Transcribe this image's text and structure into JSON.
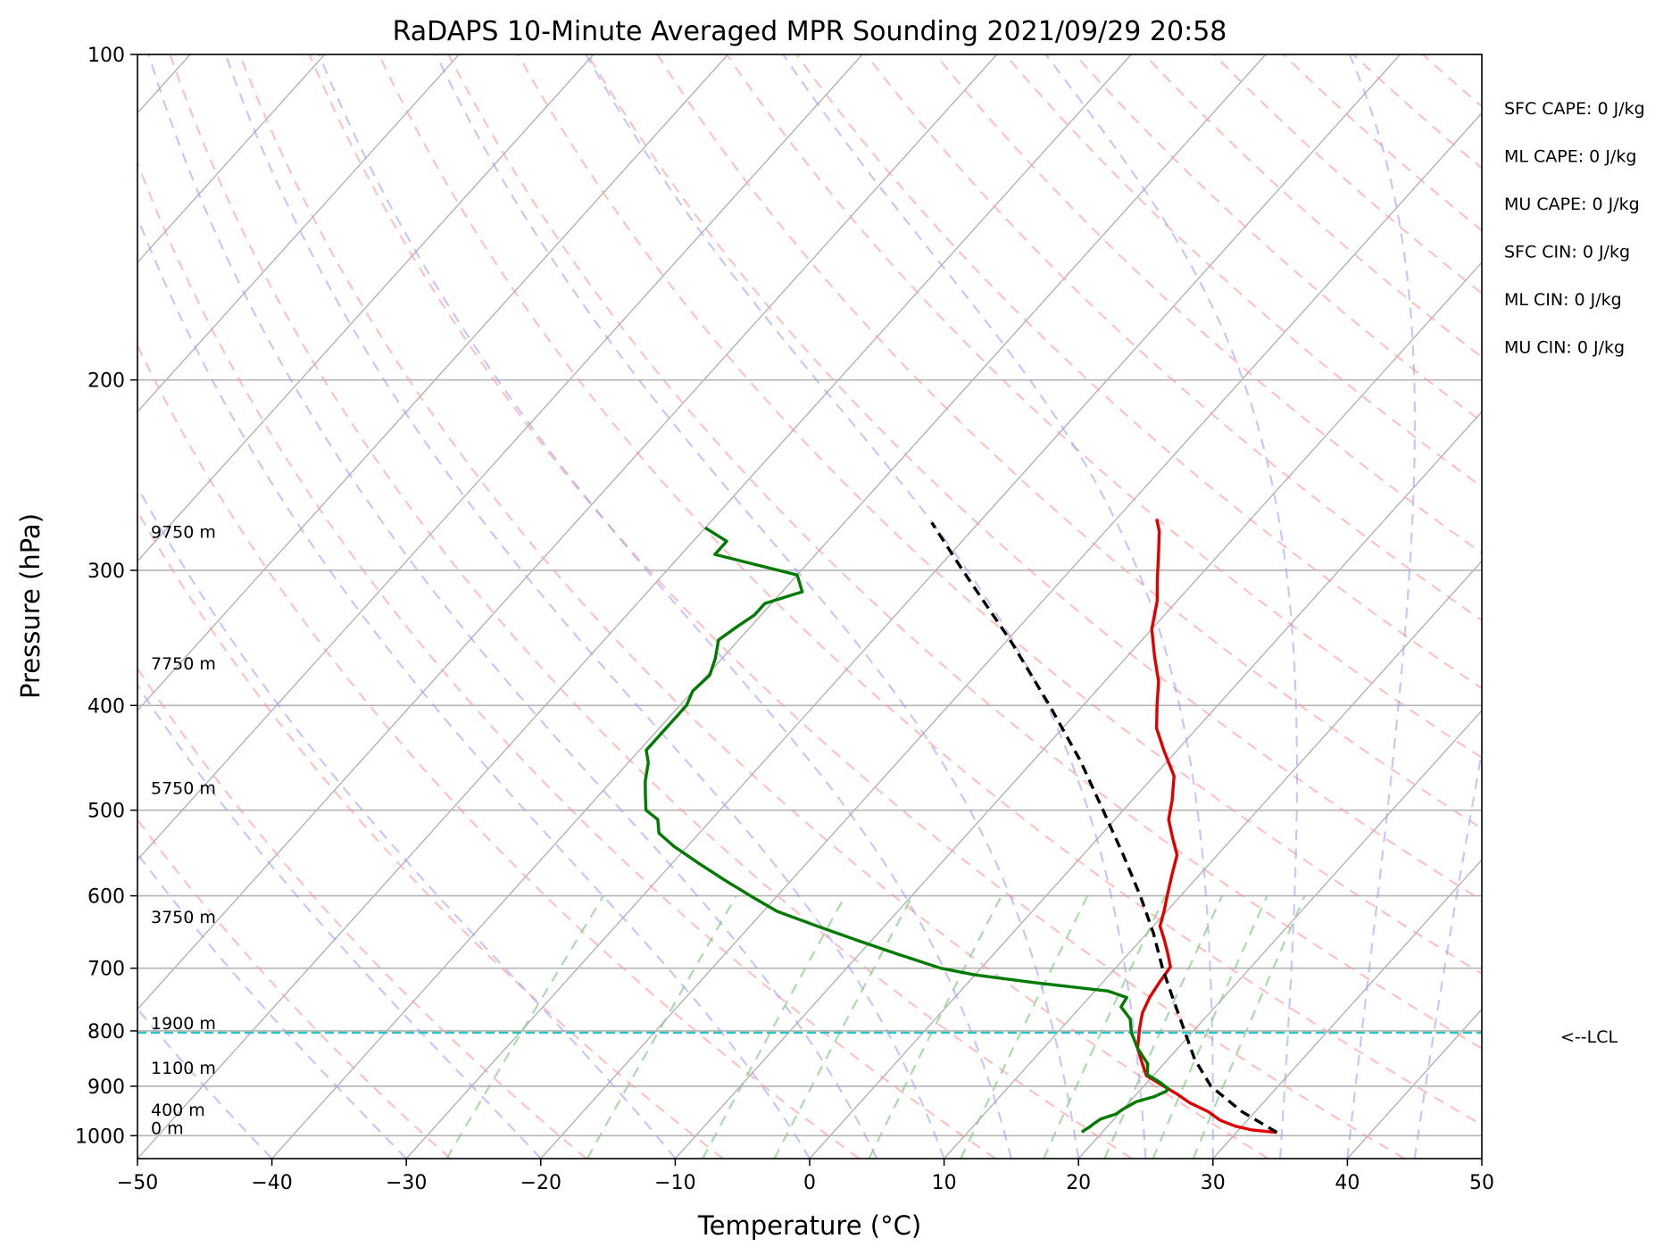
{
  "chart_data": {
    "type": "line",
    "subtype": "skew-T log-P sounding",
    "title": "RaDAPS 10-Minute Averaged MPR Sounding 2021/09/29 20:58",
    "xlabel": "Temperature (°C)",
    "ylabel": "Pressure (hPa)",
    "xlim": [
      -50,
      50
    ],
    "ylim": [
      1050,
      100
    ],
    "y_scale": "log",
    "x_ticks": [
      "−50",
      "−40",
      "−30",
      "−20",
      "−10",
      "0",
      "10",
      "20",
      "30",
      "40",
      "50"
    ],
    "y_ticks": [
      "100",
      "200",
      "300",
      "400",
      "500",
      "600",
      "700",
      "800",
      "900",
      "1000"
    ],
    "y_tick_values": [
      100,
      200,
      300,
      400,
      500,
      600,
      700,
      800,
      900,
      1000
    ],
    "grid": true,
    "height_labels": [
      {
        "text": "9750 m",
        "p": 281
      },
      {
        "text": "7750 m",
        "p": 372
      },
      {
        "text": "5750 m",
        "p": 485
      },
      {
        "text": "3750 m",
        "p": 638
      },
      {
        "text": "1900 m",
        "p": 800
      },
      {
        "text": "1100 m",
        "p": 880
      },
      {
        "text": "400 m",
        "p": 962
      },
      {
        "text": "0 m",
        "p": 1000
      }
    ],
    "lcl": {
      "label": "<--LCL",
      "p": 803
    },
    "indices": [
      "SFC CAPE: 0 J/kg",
      "ML CAPE: 0 J/kg",
      "MU CAPE: 0 J/kg",
      "SFC CIN: 0 J/kg",
      "ML CIN: 0 J/kg",
      "MU CIN: 0 J/kg"
    ],
    "series": [
      {
        "color": "#e00000",
        "style": "solid",
        "points": [
          {
            "p": 993,
            "t": 33.0
          },
          {
            "p": 988,
            "t": 31.0
          },
          {
            "p": 980,
            "t": 29.5
          },
          {
            "p": 968,
            "t": 28.0
          },
          {
            "p": 950,
            "t": 26.5
          },
          {
            "p": 932,
            "t": 24.5
          },
          {
            "p": 915,
            "t": 23.0
          },
          {
            "p": 900,
            "t": 21.5
          },
          {
            "p": 880,
            "t": 19.5
          },
          {
            "p": 860,
            "t": 18.5
          },
          {
            "p": 830,
            "t": 17.0
          },
          {
            "p": 795,
            "t": 15.8
          },
          {
            "p": 770,
            "t": 15.0
          },
          {
            "p": 745,
            "t": 14.5
          },
          {
            "p": 720,
            "t": 14.2
          },
          {
            "p": 698,
            "t": 14.0
          },
          {
            "p": 680,
            "t": 13.0
          },
          {
            "p": 660,
            "t": 11.8
          },
          {
            "p": 640,
            "t": 10.5
          },
          {
            "p": 620,
            "t": 9.8
          },
          {
            "p": 600,
            "t": 9.0
          },
          {
            "p": 575,
            "t": 8.0
          },
          {
            "p": 550,
            "t": 7.0
          },
          {
            "p": 530,
            "t": 5.5
          },
          {
            "p": 510,
            "t": 4.0
          },
          {
            "p": 490,
            "t": 3.0
          },
          {
            "p": 465,
            "t": 1.5
          },
          {
            "p": 440,
            "t": -1.0
          },
          {
            "p": 420,
            "t": -3.0
          },
          {
            "p": 400,
            "t": -4.5
          },
          {
            "p": 380,
            "t": -6.0
          },
          {
            "p": 360,
            "t": -8.0
          },
          {
            "p": 340,
            "t": -10.0
          },
          {
            "p": 320,
            "t": -11.5
          },
          {
            "p": 305,
            "t": -13.0
          },
          {
            "p": 290,
            "t": -14.5
          },
          {
            "p": 276,
            "t": -16.0
          },
          {
            "p": 269,
            "t": -17.0
          }
        ]
      },
      {
        "color": "#007a00",
        "style": "solid",
        "points": [
          {
            "p": 993,
            "t": 18.5
          },
          {
            "p": 990,
            "t": 18.5
          },
          {
            "p": 982,
            "t": 18.7
          },
          {
            "p": 975,
            "t": 18.8
          },
          {
            "p": 965,
            "t": 19.0
          },
          {
            "p": 955,
            "t": 19.8
          },
          {
            "p": 945,
            "t": 20.0
          },
          {
            "p": 930,
            "t": 20.5
          },
          {
            "p": 920,
            "t": 21.5
          },
          {
            "p": 910,
            "t": 22.0
          },
          {
            "p": 905,
            "t": 22.0
          },
          {
            "p": 893,
            "t": 21.0
          },
          {
            "p": 878,
            "t": 19.5
          },
          {
            "p": 858,
            "t": 18.8
          },
          {
            "p": 830,
            "t": 17.0
          },
          {
            "p": 803,
            "t": 15.5
          },
          {
            "p": 780,
            "t": 14.5
          },
          {
            "p": 760,
            "t": 13.0
          },
          {
            "p": 745,
            "t": 12.8
          },
          {
            "p": 735,
            "t": 11.0
          },
          {
            "p": 722,
            "t": 5.0
          },
          {
            "p": 710,
            "t": 0.0
          },
          {
            "p": 700,
            "t": -3.0
          },
          {
            "p": 680,
            "t": -7.0
          },
          {
            "p": 660,
            "t": -11.0
          },
          {
            "p": 640,
            "t": -15.0
          },
          {
            "p": 620,
            "t": -19.0
          },
          {
            "p": 600,
            "t": -22.0
          },
          {
            "p": 580,
            "t": -25.0
          },
          {
            "p": 560,
            "t": -28.0
          },
          {
            "p": 540,
            "t": -31.0
          },
          {
            "p": 525,
            "t": -33.0
          },
          {
            "p": 510,
            "t": -34.0
          },
          {
            "p": 500,
            "t": -35.5
          },
          {
            "p": 485,
            "t": -36.5
          },
          {
            "p": 470,
            "t": -37.5
          },
          {
            "p": 452,
            "t": -38.5
          },
          {
            "p": 440,
            "t": -39.5
          },
          {
            "p": 420,
            "t": -39.5
          },
          {
            "p": 400,
            "t": -39.5
          },
          {
            "p": 388,
            "t": -40.0
          },
          {
            "p": 375,
            "t": -39.8
          },
          {
            "p": 362,
            "t": -40.5
          },
          {
            "p": 348,
            "t": -41.5
          },
          {
            "p": 338,
            "t": -41.0
          },
          {
            "p": 330,
            "t": -40.5
          },
          {
            "p": 322,
            "t": -40.5
          },
          {
            "p": 314,
            "t": -38.5
          },
          {
            "p": 303,
            "t": -40.0
          },
          {
            "p": 290,
            "t": -47.5
          },
          {
            "p": 282,
            "t": -47.5
          },
          {
            "p": 274,
            "t": -50.0
          }
        ]
      },
      {
        "color": "#000000",
        "style": "dashed",
        "points": [
          {
            "p": 993,
            "t": 33.0
          },
          {
            "p": 950,
            "t": 29.0
          },
          {
            "p": 900,
            "t": 25.0
          },
          {
            "p": 850,
            "t": 22.0
          },
          {
            "p": 803,
            "t": 19.5
          },
          {
            "p": 750,
            "t": 16.5
          },
          {
            "p": 700,
            "t": 13.5
          },
          {
            "p": 650,
            "t": 10.5
          },
          {
            "p": 600,
            "t": 7.0
          },
          {
            "p": 550,
            "t": 3.0
          },
          {
            "p": 500,
            "t": -1.5
          },
          {
            "p": 450,
            "t": -6.5
          },
          {
            "p": 400,
            "t": -12.5
          },
          {
            "p": 350,
            "t": -19.5
          },
          {
            "p": 300,
            "t": -28.0
          },
          {
            "p": 271,
            "t": -33.5
          }
        ]
      }
    ],
    "colors": {
      "temperature": "#e00000",
      "dewpoint": "#007a00",
      "parcel": "#000000",
      "isotherm": "#b4b4b4",
      "dry_adiabat": "#ff9999",
      "moist_adiabat": "#9999ff",
      "mixing_ratio": "#88cc88",
      "lcl_line": "#2cc4c4"
    }
  }
}
